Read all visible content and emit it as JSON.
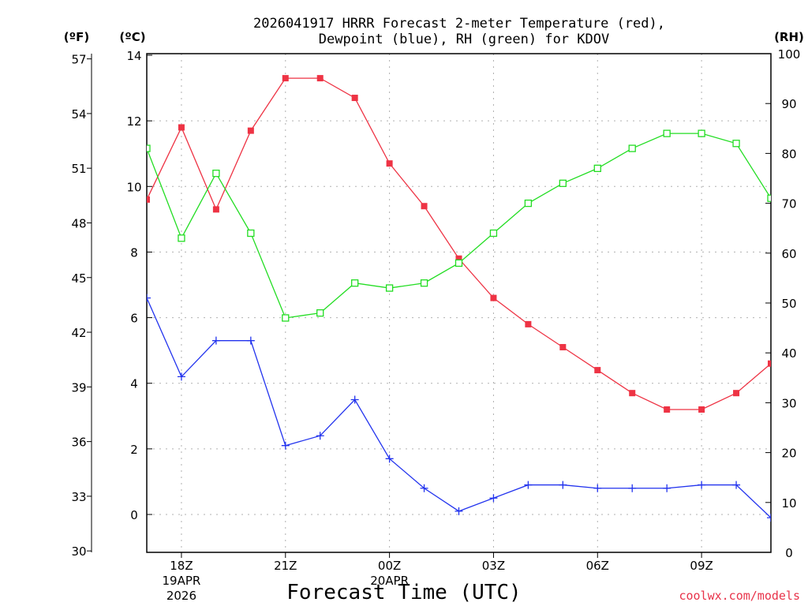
{
  "chart_data": {
    "type": "line",
    "title_line1": "2026041917 HRRR Forecast 2-meter Temperature (red),",
    "title_line2": "Dewpoint (blue), RH (green) for KDOV",
    "xlabel": "Forecast Time (UTC)",
    "watermark": "coolwx.com/models",
    "left_outer_unit": "(ºF)",
    "left_inner_unit": "(ºC)",
    "right_unit": "(RH)",
    "x_hours": [
      17,
      18,
      19,
      20,
      21,
      22,
      23,
      24,
      25,
      26,
      27,
      28,
      29,
      30,
      31,
      32,
      33,
      34,
      35
    ],
    "x_range": [
      17,
      35
    ],
    "x_ticks": [
      {
        "hour": 18,
        "label": "18Z",
        "sub1": "19APR",
        "sub2": "2026"
      },
      {
        "hour": 21,
        "label": "21Z",
        "sub1": "",
        "sub2": ""
      },
      {
        "hour": 24,
        "label": "00Z",
        "sub1": "20APR",
        "sub2": ""
      },
      {
        "hour": 27,
        "label": "03Z",
        "sub1": "",
        "sub2": ""
      },
      {
        "hour": 30,
        "label": "06Z",
        "sub1": "",
        "sub2": ""
      },
      {
        "hour": 33,
        "label": "09Z",
        "sub1": "",
        "sub2": ""
      }
    ],
    "c_range": [
      -1.2,
      14
    ],
    "c_ticks": [
      "0",
      "2",
      "4",
      "6",
      "8",
      "10",
      "12",
      "14"
    ],
    "f_ticks": [
      "30",
      "33",
      "36",
      "39",
      "42",
      "45",
      "48",
      "51",
      "54",
      "57"
    ],
    "rh_range": [
      0,
      100
    ],
    "rh_ticks": [
      "0",
      "10",
      "20",
      "30",
      "40",
      "50",
      "60",
      "70",
      "80",
      "90",
      "100"
    ],
    "grid": true,
    "series": [
      {
        "name": "Temperature",
        "axis": "C",
        "color": "#ee3344",
        "marker": "filled-square",
        "values": [
          9.6,
          11.8,
          9.3,
          11.7,
          13.3,
          13.3,
          12.7,
          10.7,
          9.4,
          7.8,
          6.6,
          5.8,
          5.1,
          4.4,
          3.7,
          3.2,
          3.2,
          3.7,
          4.6
        ]
      },
      {
        "name": "Dewpoint",
        "axis": "C",
        "color": "#2233ee",
        "marker": "plus",
        "values": [
          6.6,
          4.2,
          5.3,
          5.3,
          2.1,
          2.4,
          3.5,
          1.7,
          0.8,
          0.1,
          0.5,
          0.9,
          0.9,
          0.8,
          0.8,
          0.8,
          0.9,
          0.9,
          -0.1
        ]
      },
      {
        "name": "RH",
        "axis": "RH",
        "color": "#22dd22",
        "marker": "open-square",
        "values": [
          81,
          63,
          76,
          64,
          47,
          48,
          54,
          53,
          54,
          58,
          64,
          70,
          74,
          77,
          81,
          84,
          84,
          82,
          71
        ]
      }
    ]
  }
}
